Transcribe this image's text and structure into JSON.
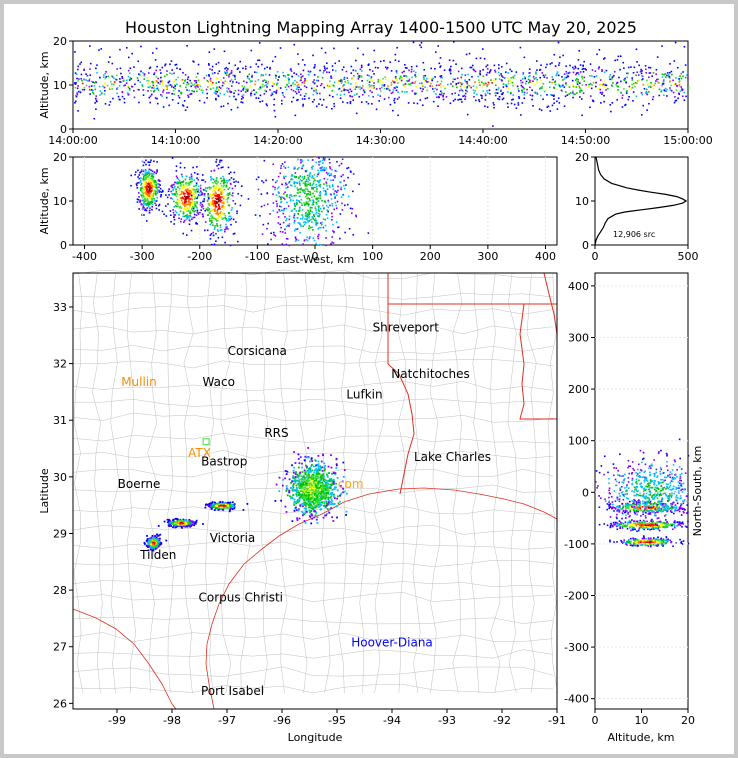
{
  "chart_data": [
    {
      "id": "time-height",
      "type": "scatter",
      "title": "Houston Lightning Mapping Array 1400-1500 UTC May 20, 2025",
      "ylabel": "Altitude, km",
      "xlabel": "",
      "x_ticks": [
        "14:00:00",
        "14:10:00",
        "14:20:00",
        "14:30:00",
        "14:40:00",
        "14:50:00",
        "15:00:00"
      ],
      "y_ticks": [
        "0",
        "10",
        "20"
      ],
      "xlim": [
        0,
        60
      ],
      "ylim": [
        0,
        20
      ],
      "bands": [
        {
          "t_start": 0.5,
          "t_end": 60,
          "alt_center": 10.5,
          "alt_spread": 2.5
        }
      ]
    },
    {
      "id": "ew-height",
      "type": "scatter",
      "xlabel": "East-West, km",
      "ylabel": "Altitude, km",
      "x_ticks": [
        "-400",
        "-300",
        "-200",
        "-100",
        "0",
        "100",
        "200",
        "300",
        "400"
      ],
      "y_ticks": [
        "0",
        "10",
        "20"
      ],
      "xlim": [
        -420,
        420
      ],
      "ylim": [
        0,
        20
      ],
      "clusters": [
        {
          "x": -290,
          "alt": 13,
          "sx": 10,
          "sy": 2.5
        },
        {
          "x": -225,
          "alt": 11,
          "sx": 15,
          "sy": 3
        },
        {
          "x": -170,
          "alt": 10,
          "sx": 15,
          "sy": 4
        },
        {
          "x": -15,
          "alt": 11,
          "sx": 35,
          "sy": 6
        }
      ]
    },
    {
      "id": "alt-histogram",
      "type": "line",
      "x_ticks": [
        "0",
        "500"
      ],
      "y_ticks": [
        "0",
        "10",
        "20"
      ],
      "xlim": [
        0,
        500
      ],
      "ylim": [
        0,
        20
      ],
      "annotation": "12,906 src",
      "alt": [
        0,
        1,
        2,
        3,
        4,
        5,
        6,
        7,
        7.5,
        8,
        8.5,
        9,
        9.5,
        10,
        10.5,
        11,
        11.5,
        12,
        12.5,
        13,
        13.5,
        14,
        15,
        16,
        17,
        18,
        19,
        20
      ],
      "count": [
        0,
        5,
        15,
        30,
        45,
        55,
        70,
        110,
        160,
        250,
        340,
        420,
        470,
        490,
        470,
        440,
        380,
        300,
        230,
        170,
        130,
        90,
        50,
        30,
        20,
        15,
        10,
        5
      ]
    },
    {
      "id": "plan-view",
      "type": "scatter",
      "xlabel": "Longitude",
      "ylabel": "Latitude",
      "x_ticks": [
        "-99",
        "-98",
        "-97",
        "-96",
        "-95",
        "-94",
        "-93",
        "-92",
        "-91"
      ],
      "y_ticks": [
        "26",
        "27",
        "28",
        "29",
        "30",
        "31",
        "32",
        "33"
      ],
      "xlim": [
        -99.8,
        -91
      ],
      "ylim": [
        25.9,
        33.6
      ],
      "clusters": [
        {
          "lon": -98.35,
          "lat": 28.85,
          "slon": 0.06,
          "slat": 0.05
        },
        {
          "lon": -97.85,
          "lat": 29.2,
          "slon": 0.12,
          "slat": 0.03
        },
        {
          "lon": -97.1,
          "lat": 29.5,
          "slon": 0.12,
          "slat": 0.03
        },
        {
          "lon": -95.45,
          "lat": 29.8,
          "slon": 0.22,
          "slat": 0.22
        }
      ],
      "cities": [
        {
          "name": "Shreveport",
          "lon": -93.75,
          "lat": 32.57,
          "color": "#000000"
        },
        {
          "name": "Corsicana",
          "lon": -96.45,
          "lat": 32.15,
          "color": "#000000"
        },
        {
          "name": "Natchitoches",
          "lon": -93.3,
          "lat": 31.75,
          "color": "#000000"
        },
        {
          "name": "Mullin",
          "lon": -98.6,
          "lat": 31.6,
          "color": "#ff8c00"
        },
        {
          "name": "Waco",
          "lon": -97.15,
          "lat": 31.6,
          "color": "#000000"
        },
        {
          "name": "Lufkin",
          "lon": -94.5,
          "lat": 31.38,
          "color": "#000000"
        },
        {
          "name": "RRS",
          "lon": -96.1,
          "lat": 30.7,
          "color": "#000000"
        },
        {
          "name": "ATX",
          "lon": -97.5,
          "lat": 30.35,
          "color": "#ff8c00"
        },
        {
          "name": "Lake Charles",
          "lon": -92.9,
          "lat": 30.28,
          "color": "#000000"
        },
        {
          "name": "Bastrop",
          "lon": -97.05,
          "lat": 30.2,
          "color": "#000000"
        },
        {
          "name": "Boerne",
          "lon": -98.6,
          "lat": 29.8,
          "color": "#000000"
        },
        {
          "name": "com",
          "lon": -94.75,
          "lat": 29.8,
          "color": "#ffa500"
        },
        {
          "name": "Victoria",
          "lon": -96.9,
          "lat": 28.85,
          "color": "#000000"
        },
        {
          "name": "Tilden",
          "lon": -98.25,
          "lat": 28.55,
          "color": "#000000"
        },
        {
          "name": "Corpus Christi",
          "lon": -96.75,
          "lat": 27.8,
          "color": "#000000"
        },
        {
          "name": "Hoover-Diana",
          "lon": -94.0,
          "lat": 27.0,
          "color": "#0000ff"
        },
        {
          "name": "Port Isabel",
          "lon": -96.9,
          "lat": 26.15,
          "color": "#000000"
        }
      ]
    },
    {
      "id": "ns-height",
      "type": "scatter",
      "xlabel": "Altitude, km",
      "ylabel": "North-South, km",
      "x_ticks": [
        "0",
        "10",
        "20"
      ],
      "y_ticks": [
        "-400",
        "-300",
        "-200",
        "-100",
        "0",
        "100",
        "200",
        "300",
        "400"
      ],
      "xlim": [
        0,
        20
      ],
      "ylim": [
        -420,
        425
      ],
      "clusters": [
        {
          "alt": 11,
          "ns": -28,
          "sa": 4,
          "sn": 5
        },
        {
          "alt": 11,
          "ns": -62,
          "sa": 4,
          "sn": 4
        },
        {
          "alt": 11,
          "ns": -95,
          "sa": 3,
          "sn": 4
        },
        {
          "alt": 12,
          "ns": 5,
          "sa": 5,
          "sn": 30
        }
      ]
    }
  ]
}
